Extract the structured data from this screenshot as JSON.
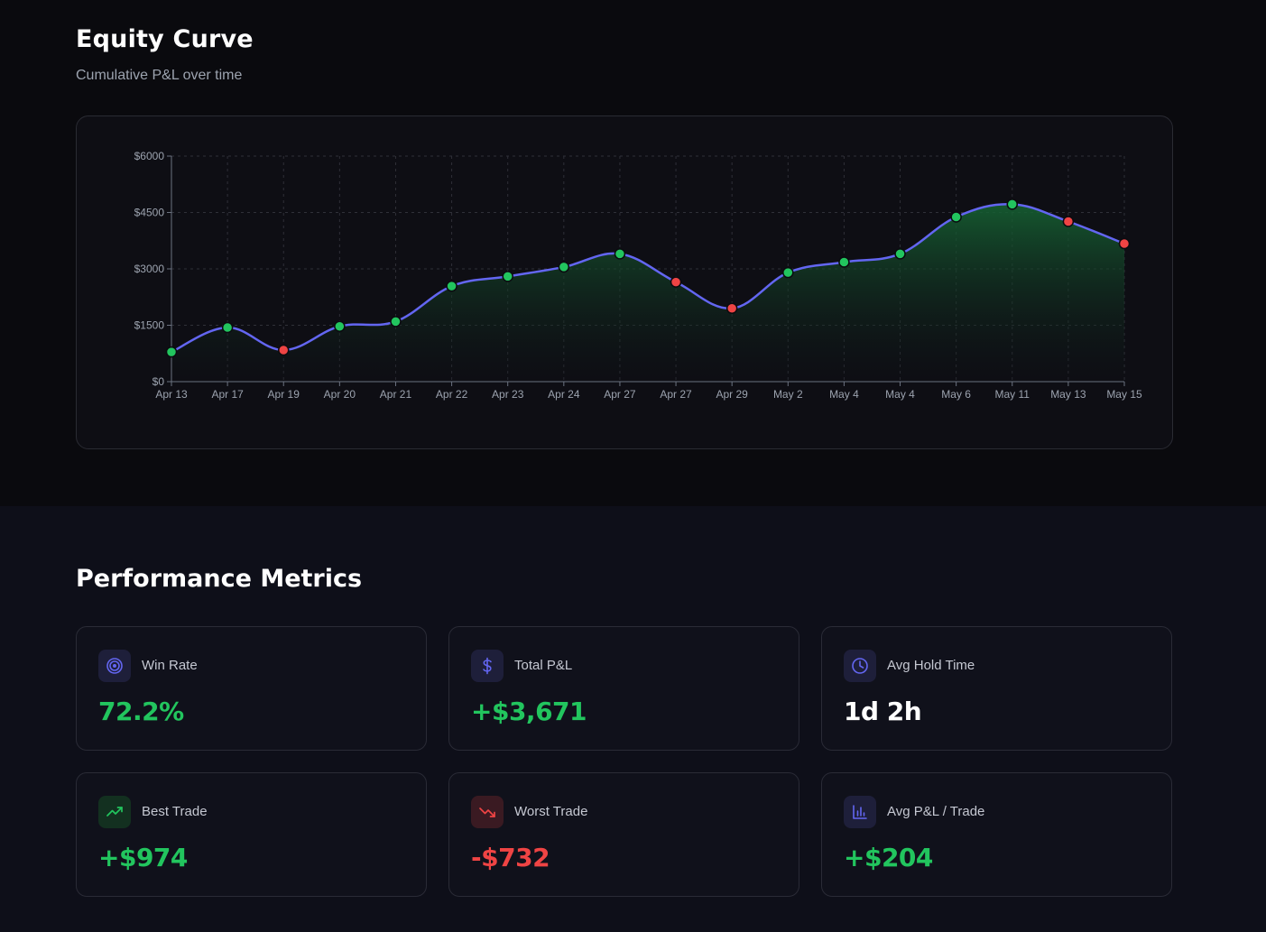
{
  "equity": {
    "title": "Equity Curve",
    "subtitle": "Cumulative P&L over time"
  },
  "chart_data": {
    "type": "area",
    "title": "",
    "xlabel": "",
    "ylabel": "",
    "ylim": [
      0,
      6000
    ],
    "y_ticks": [
      "$0",
      "$1500",
      "$3000",
      "$4500",
      "$6000"
    ],
    "y_tick_values": [
      0,
      1500,
      3000,
      4500,
      6000
    ],
    "grid": true,
    "categories": [
      "Apr 13",
      "Apr 17",
      "Apr 19",
      "Apr 20",
      "Apr 21",
      "Apr 22",
      "Apr 23",
      "Apr 24",
      "Apr 27",
      "Apr 27",
      "Apr 29",
      "May 2",
      "May 4",
      "May 4",
      "May 6",
      "May 11",
      "May 13",
      "May 15"
    ],
    "series": [
      {
        "values": [
          790,
          1440,
          840,
          1470,
          1600,
          2540,
          2800,
          3050,
          3400,
          2650,
          1950,
          2900,
          3180,
          3400,
          4380,
          4720,
          4260,
          3671
        ],
        "point_status": [
          "win",
          "win",
          "loss",
          "win",
          "win",
          "win",
          "win",
          "win",
          "win",
          "loss",
          "loss",
          "win",
          "win",
          "win",
          "win",
          "win",
          "loss",
          "loss"
        ]
      }
    ],
    "colors": {
      "line": "#6366f1",
      "win": "#22c55e",
      "loss": "#ef4444",
      "fill": "#14532d"
    }
  },
  "metrics": {
    "title": "Performance Metrics",
    "cards": [
      {
        "label": "Win Rate",
        "value": "72.2%",
        "icon": "target-icon"
      },
      {
        "label": "Total P&L",
        "value": "+$3,671",
        "icon": "dollar-icon"
      },
      {
        "label": "Avg Hold Time",
        "value": "1d 2h",
        "icon": "clock-icon"
      },
      {
        "label": "Best Trade",
        "value": "+$974",
        "icon": "trending-up-icon"
      },
      {
        "label": "Worst Trade",
        "value": "-$732",
        "icon": "trending-down-icon"
      },
      {
        "label": "Avg P&L / Trade",
        "value": "+$204",
        "icon": "bar-chart-icon"
      }
    ]
  }
}
